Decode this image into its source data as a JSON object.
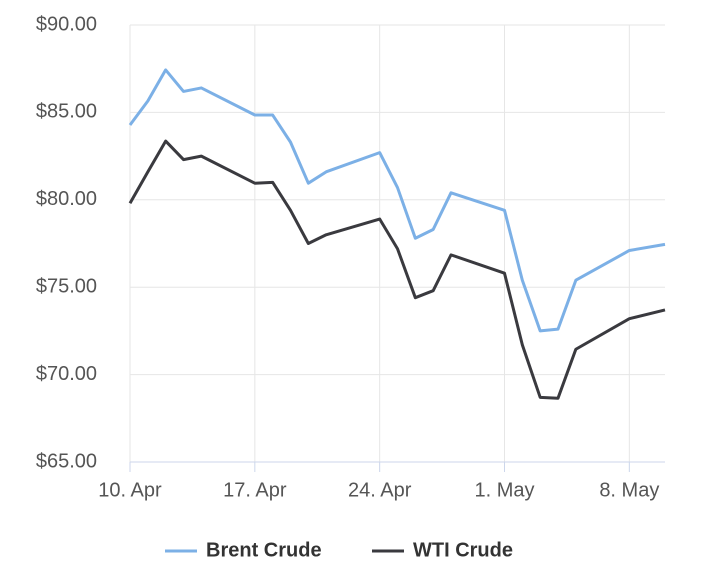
{
  "chart_data": {
    "type": "line",
    "x": [
      0,
      1,
      2,
      3,
      4,
      7,
      8,
      9,
      10,
      11,
      14,
      15,
      16,
      17,
      18,
      21,
      22,
      23,
      24,
      25,
      28,
      30
    ],
    "series": [
      {
        "name": "Brent Crude",
        "color": "#7cb0e6",
        "values": [
          84.28,
          85.65,
          87.43,
          86.2,
          86.4,
          84.85,
          84.85,
          83.3,
          80.95,
          81.6,
          82.7,
          80.7,
          77.8,
          78.3,
          80.4,
          79.4,
          75.4,
          72.5,
          72.6,
          75.4,
          77.1,
          77.45
        ]
      },
      {
        "name": "WTI Crude",
        "color": "#3a3a3f",
        "values": [
          79.8,
          81.6,
          83.36,
          82.3,
          82.5,
          80.95,
          81.0,
          79.4,
          77.5,
          78.0,
          78.9,
          77.2,
          74.4,
          74.8,
          76.85,
          75.8,
          71.7,
          68.7,
          68.65,
          71.45,
          73.2,
          73.7
        ]
      }
    ],
    "xlim": [
      0,
      30
    ],
    "xticks": [
      {
        "value": 0,
        "label": "10. Apr"
      },
      {
        "value": 7,
        "label": "17. Apr"
      },
      {
        "value": 14,
        "label": "24. Apr"
      },
      {
        "value": 21,
        "label": "1. May"
      },
      {
        "value": 28,
        "label": "8. May"
      }
    ],
    "ylim": [
      65,
      90
    ],
    "yticks": [
      {
        "value": 65,
        "label": "$65.00"
      },
      {
        "value": 70,
        "label": "$70.00"
      },
      {
        "value": 75,
        "label": "$75.00"
      },
      {
        "value": 80,
        "label": "$80.00"
      },
      {
        "value": 85,
        "label": "$85.00"
      },
      {
        "value": 90,
        "label": "$90.00"
      }
    ],
    "grid": true,
    "legend": "bottom"
  }
}
